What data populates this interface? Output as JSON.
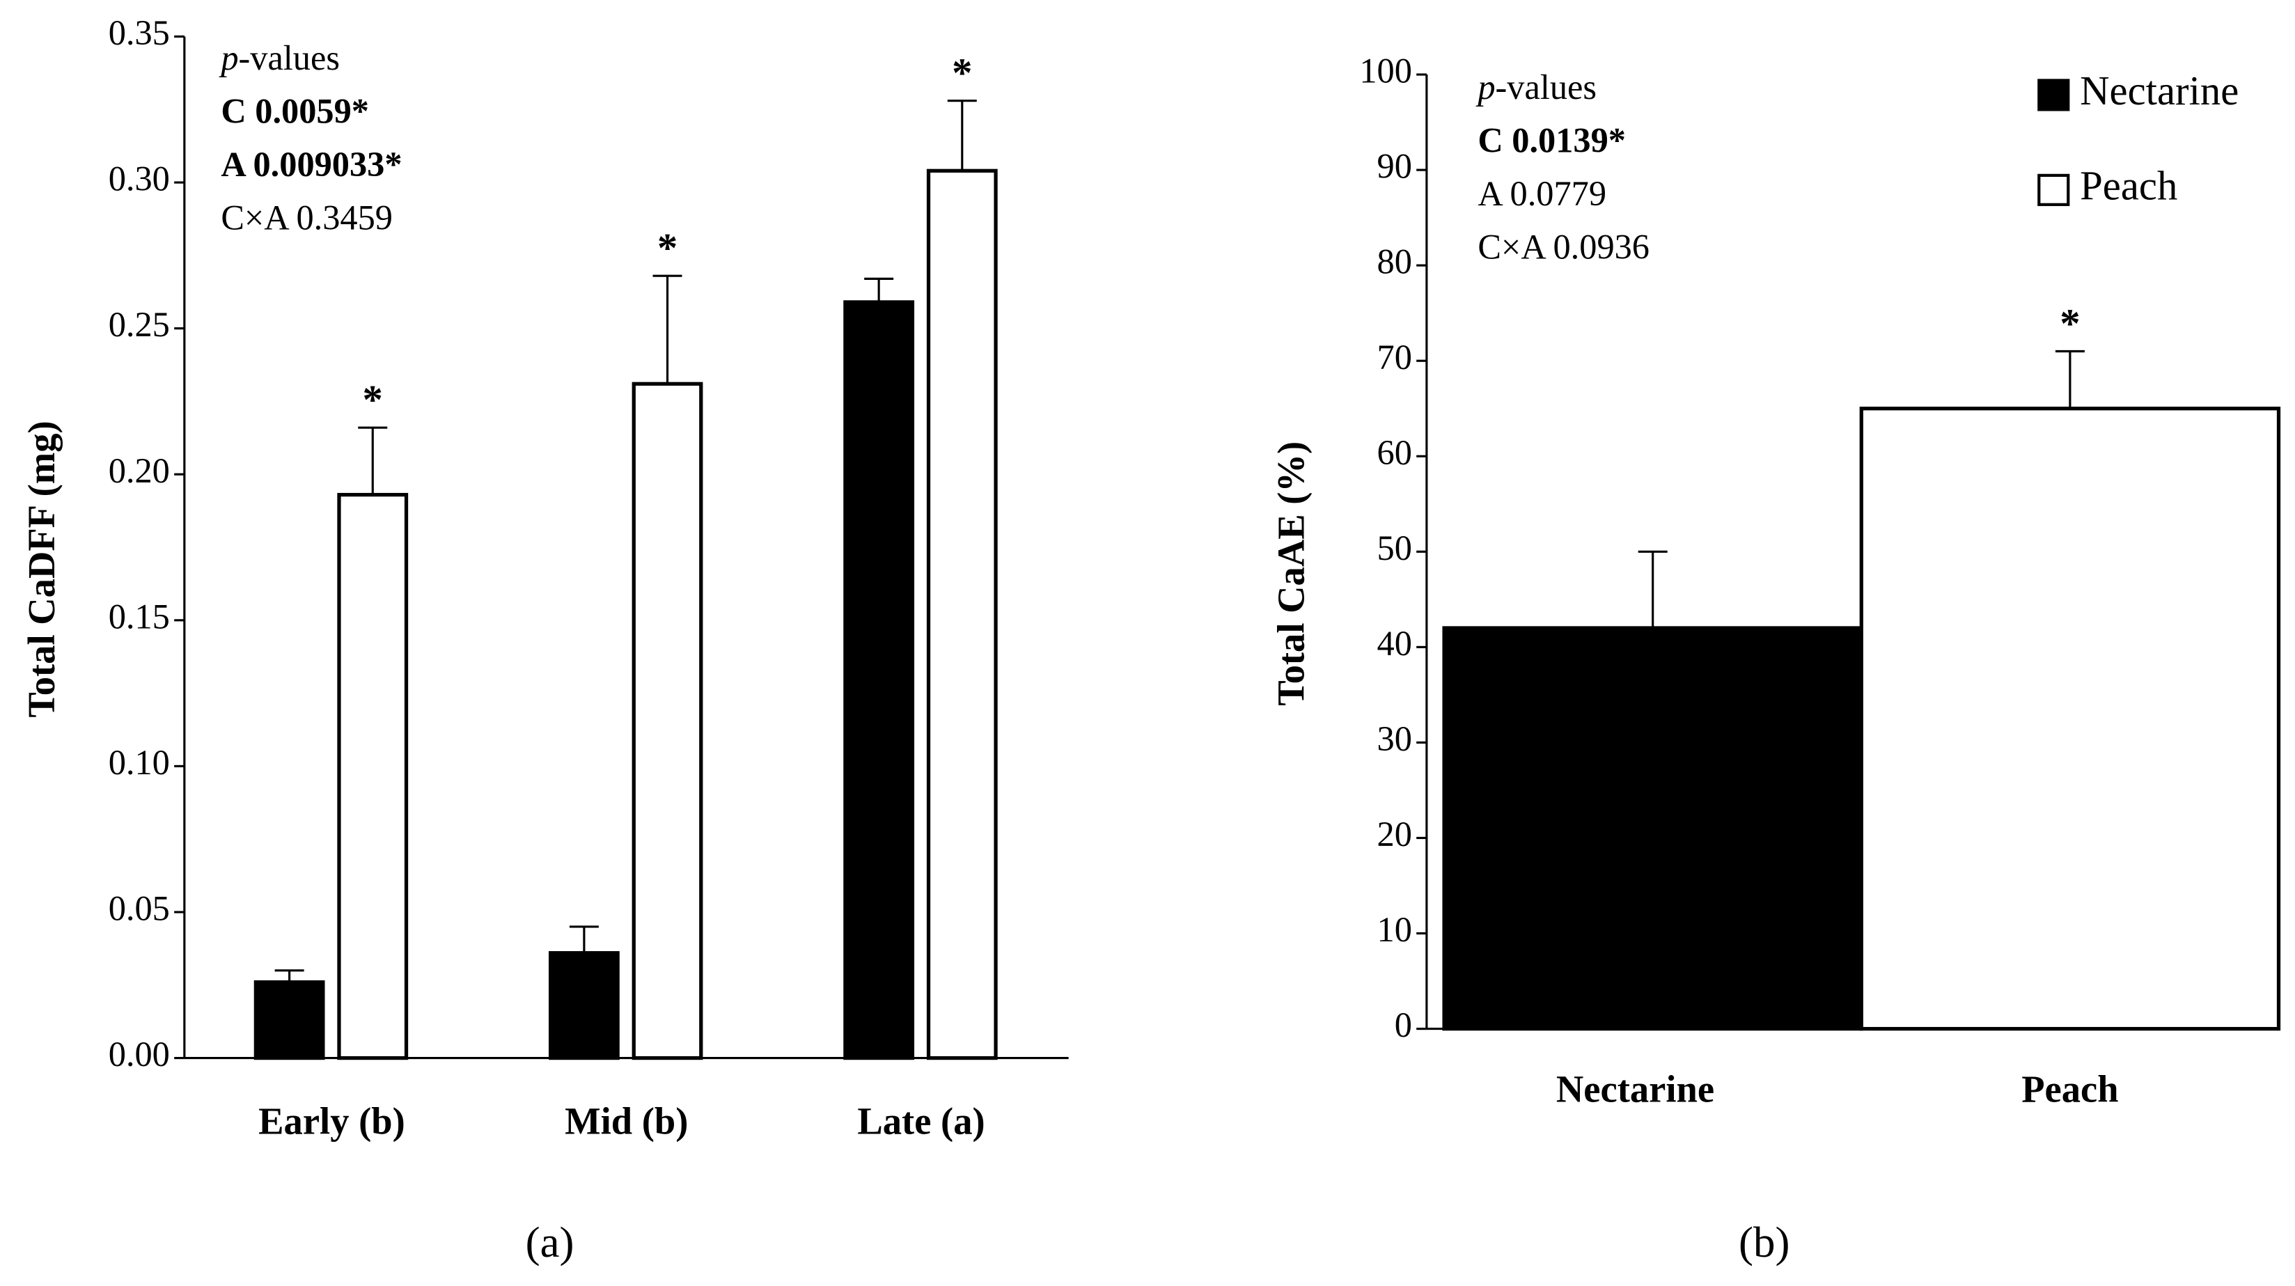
{
  "chart_data": [
    {
      "type": "grouped_bar",
      "ylabel": "Total CaDFF (mg)",
      "caption": "(a)",
      "categories": [
        "Early (b)",
        "Mid (b)",
        "Late (a)"
      ],
      "series": [
        {
          "name": "Nectarine",
          "color": "#000000",
          "values": [
            0.026,
            0.036,
            0.259
          ],
          "errors": [
            0.004,
            0.009,
            0.008
          ]
        },
        {
          "name": "Peach",
          "color": "#ffffff",
          "values": [
            0.193,
            0.231,
            0.304
          ],
          "errors": [
            0.023,
            0.037,
            0.024
          ],
          "significance": [
            "*",
            "*",
            "*"
          ]
        }
      ],
      "ylim": [
        0,
        0.35
      ],
      "yticks": [
        {
          "value": 0,
          "label": "0.00"
        },
        {
          "value": 0.05,
          "label": "0.05"
        },
        {
          "value": 0.1,
          "label": "0.10"
        },
        {
          "value": 0.15,
          "label": "0.15"
        },
        {
          "value": 0.2,
          "label": "0.20"
        },
        {
          "value": 0.25,
          "label": "0.25"
        },
        {
          "value": 0.3,
          "label": "0.30"
        },
        {
          "value": 0.35,
          "label": "0.35"
        }
      ],
      "pvalues_label": [
        "p",
        "-values"
      ],
      "annotations": [
        {
          "text": "C 0.0059*",
          "bold": true
        },
        {
          "text": "A 0.009033*",
          "bold": true
        },
        {
          "text": "C×A 0.3459",
          "bold": false
        }
      ]
    },
    {
      "type": "bar",
      "ylabel": "Total CaAE (%)",
      "caption": "(b)",
      "categories": [
        "Nectarine",
        "Peach"
      ],
      "values": [
        42,
        65
      ],
      "errors": [
        8,
        6
      ],
      "colors": [
        "#000000",
        "#ffffff"
      ],
      "significance": [
        null,
        "*"
      ],
      "legend": "top-right",
      "ylim": [
        0,
        100
      ],
      "yticks": [
        0,
        10,
        20,
        30,
        40,
        50,
        60,
        70,
        80,
        90,
        100
      ],
      "pvalues_label": [
        "p",
        "-values"
      ],
      "annotations": [
        {
          "text": "C 0.0139*",
          "bold": true
        },
        {
          "text": "A 0.0779",
          "bold": false
        },
        {
          "text": "C×A 0.0936",
          "bold": false
        }
      ]
    }
  ]
}
